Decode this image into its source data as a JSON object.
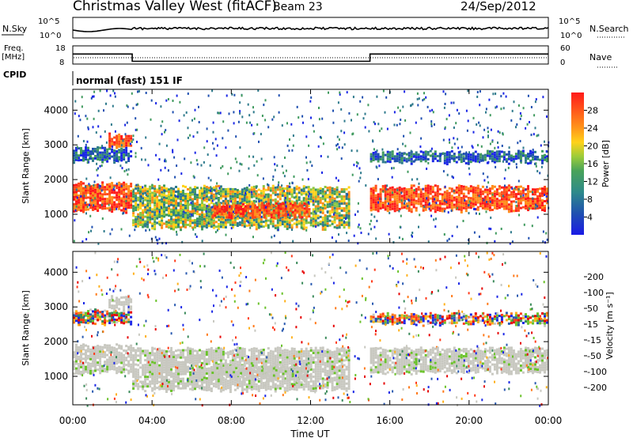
{
  "header": {
    "title": "Christmas Valley West (fitACF)",
    "beam": "Beam 23",
    "date": "24/Sep/2012"
  },
  "top_panels": {
    "nsky_label": "N.Sky",
    "nsky_ticks": [
      "10^5",
      "10^0"
    ],
    "nsearch_label": "N.Search",
    "nsearch_ticks": [
      "10^5",
      "10^0"
    ],
    "freq_label_1": "Freq.",
    "freq_label_2": "[MHz]",
    "freq_ticks": [
      "18",
      "8"
    ],
    "nave_label": "Nave",
    "nave_ticks": [
      "60",
      "0"
    ],
    "cpid_label": "CPID",
    "cpid_value": "normal (fast) 151 IF"
  },
  "chart_data": [
    {
      "type": "line",
      "panel": "frequency",
      "ylabel": "Freq. [MHz]",
      "ylim": [
        8,
        18
      ],
      "x_hours": [
        0,
        3.0,
        3.0,
        15.0,
        15.0,
        24
      ],
      "freq_mhz": [
        13.5,
        13.5,
        9.5,
        9.5,
        13.5,
        13.5
      ]
    },
    {
      "type": "heatmap",
      "panel": "power",
      "ylabel": "Slant Range [km]",
      "ylim": [
        180,
        4600
      ],
      "yticks": [
        "1000",
        "2000",
        "3000",
        "4000"
      ],
      "colorbar_label": "Power [dB]",
      "colorbar_ticks": [
        "4",
        "8",
        "12",
        "16",
        "20",
        "24",
        "28"
      ],
      "colorbar_colors": [
        "#1a26e6",
        "#1f4fb0",
        "#2e7a8c",
        "#3f9a5e",
        "#8cc63f",
        "#ffd21a",
        "#ff8c1a",
        "#ff4a1a",
        "#ff1a1a"
      ],
      "echo_regions": [
        {
          "t0": 0.0,
          "t1": 3.0,
          "r0": 1100,
          "r1": 1900,
          "level": "high"
        },
        {
          "t0": 1.8,
          "t1": 3.0,
          "r0": 2900,
          "r1": 3300,
          "level": "high"
        },
        {
          "t0": 0.0,
          "t1": 3.0,
          "r0": 2500,
          "r1": 2900,
          "level": "low"
        },
        {
          "t0": 3.0,
          "t1": 14.0,
          "r0": 600,
          "r1": 1800,
          "level": "mid"
        },
        {
          "t0": 7.0,
          "t1": 12.0,
          "r0": 900,
          "r1": 1300,
          "level": "high"
        },
        {
          "t0": 15.0,
          "t1": 24.0,
          "r0": 1100,
          "r1": 1800,
          "level": "high"
        },
        {
          "t0": 15.0,
          "t1": 24.0,
          "r0": 2500,
          "r1": 2800,
          "level": "low"
        }
      ]
    },
    {
      "type": "heatmap",
      "panel": "velocity",
      "ylabel": "Slant Range [km]",
      "ylim": [
        180,
        4600
      ],
      "yticks": [
        "1000",
        "2000",
        "3000",
        "4000"
      ],
      "colorbar_label": "Velocity [m s⁻¹]",
      "colorbar_ticks": [
        "200",
        "100",
        "50",
        "15",
        "-15",
        "-50",
        "-100",
        "-200"
      ],
      "colorbar_colors": [
        "#1a26e6",
        "#2a5ab0",
        "#3a8a5a",
        "#6ac22a",
        "#c8c8c0",
        "#ffb01a",
        "#ff7a1a",
        "#ff3a1a",
        "#e60000"
      ],
      "xlabel": "Time UT",
      "xticks": [
        "00:00",
        "04:00",
        "08:00",
        "12:00",
        "16:00",
        "20:00",
        "00:00"
      ],
      "xlim": [
        0,
        24
      ]
    }
  ]
}
